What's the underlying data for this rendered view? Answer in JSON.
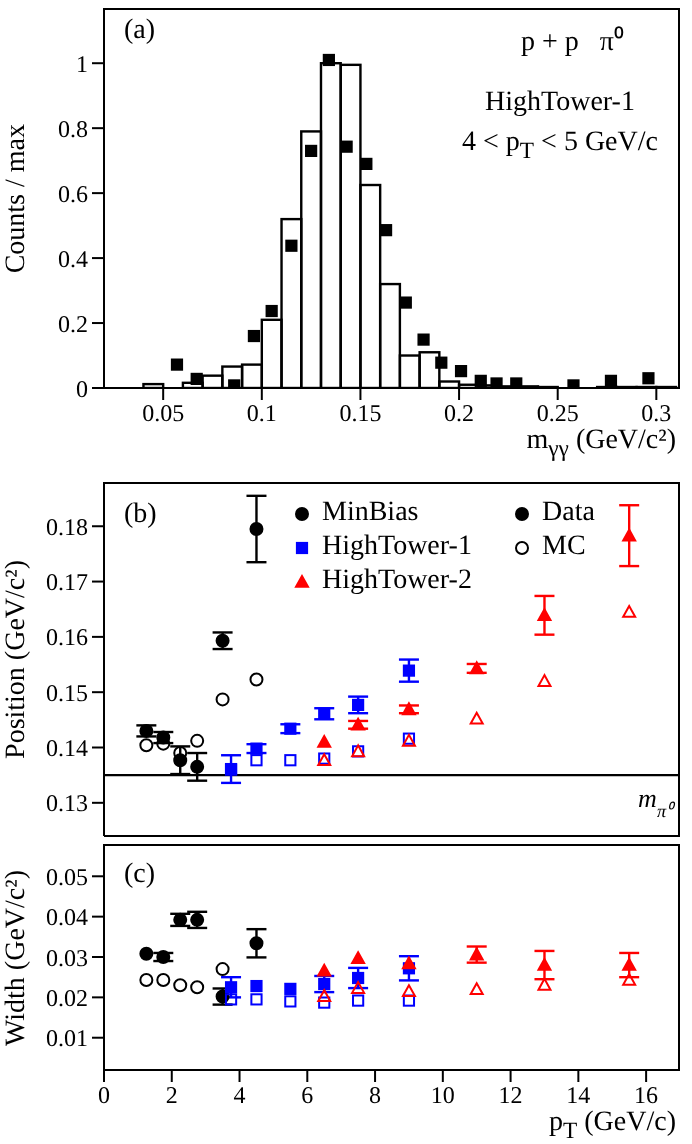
{
  "chart_data": [
    {
      "type": "histogram",
      "xlabel": "m$_{γγ}$ (GeV/c²)",
      "ylabel": "Counts / max",
      "annotations": [
        "(a)",
        "p + p   π⁰",
        "HighTower-1",
        "4 < p$_{T}$ < 5 GeV/c"
      ],
      "xlim": [
        0.02,
        0.312
      ],
      "xticks": [
        0.05,
        0.1,
        0.15,
        0.2,
        0.25,
        0.3
      ],
      "ylim": [
        0,
        1.17
      ],
      "yticks": [
        0,
        0.2,
        0.4,
        0.6,
        0.8,
        1
      ],
      "series": [
        {
          "type": "scatter",
          "color": "#000000",
          "marker": "square",
          "x": [
            0.057,
            0.067,
            0.086,
            0.096,
            0.105,
            0.115,
            0.125,
            0.134,
            0.143,
            0.153,
            0.163,
            0.173,
            0.182,
            0.191,
            0.201,
            0.211,
            0.219,
            0.229,
            0.258,
            0.277,
            0.296
          ],
          "values": [
            0.072,
            0.028,
            0.008,
            0.16,
            0.237,
            0.438,
            0.73,
            1.01,
            0.743,
            0.69,
            0.486,
            0.263,
            0.149,
            0.078,
            0.052,
            0.022,
            0.014,
            0.014,
            0.008,
            0.022,
            0.03
          ]
        },
        {
          "color": "#000000",
          "bins": [
            0.04,
            0.05,
            0.06,
            0.07,
            0.08,
            0.09,
            0.1,
            0.11,
            0.12,
            0.13,
            0.14,
            0.15,
            0.16,
            0.17,
            0.18,
            0.19,
            0.2,
            0.21,
            0.22,
            0.23,
            0.24,
            0.25,
            0.26,
            0.27,
            0.28,
            0.29,
            0.3,
            0.31
          ],
          "values": [
            0.012,
            0,
            0.016,
            0.038,
            0.066,
            0.072,
            0.21,
            0.52,
            0.79,
            1.0,
            0.995,
            0.625,
            0.32,
            0.1,
            0.11,
            0.02,
            0.01,
            0.008,
            0.005,
            0.005,
            0.003,
            0,
            0,
            0.003,
            0.003,
            0.003,
            0.003
          ]
        }
      ]
    },
    {
      "type": "scatter",
      "ylabel": "Position (GeV/c²)",
      "annotations": [
        "(b)",
        "Data"
      ],
      "xlim": [
        0,
        17
      ],
      "xticks": [
        0,
        2,
        4,
        6,
        8,
        10,
        12,
        14,
        16
      ],
      "ylim": [
        0.124,
        0.188
      ],
      "yticks": [
        0.13,
        0.14,
        0.15,
        0.16,
        0.17,
        0.18
      ],
      "tick_labels": "y",
      "legend": "top right",
      "ref_lines": [
        {
          "axis": "y",
          "value": 0.135,
          "label": "m$_{π⁰}$"
        }
      ],
      "series": [
        {
          "name": "MinBias",
          "color": "#000000",
          "marker": "circle",
          "x": [
            1.25,
            1.75,
            2.25,
            2.75,
            3.5,
            4.5
          ],
          "values": [
            0.143,
            0.1418,
            0.1377,
            0.1365,
            0.1593,
            0.1795
          ],
          "errors": [
            0.001,
            0.001,
            0.0025,
            0.0025,
            0.0015,
            0.006
          ]
        },
        {
          "name": "MC",
          "color": "#000000",
          "marker": "circle",
          "x": [
            1.25,
            1.75,
            2.25,
            2.75,
            3.5,
            4.5
          ],
          "values": [
            0.1404,
            0.1407,
            0.139,
            0.1412,
            0.1487,
            0.1523
          ]
        },
        {
          "name": "HighTower-1",
          "color": "#0000ff",
          "marker": "square",
          "x": [
            3.75,
            4.5,
            5.5,
            6.5,
            7.5,
            9
          ],
          "values": [
            0.1361,
            0.1398,
            0.1434,
            0.1461,
            0.1477,
            0.1539
          ],
          "errors": [
            0.0025,
            0.0008,
            0.0008,
            0.001,
            0.0015,
            0.002
          ]
        },
        {
          "color": "#0000ff",
          "marker": "square",
          "x": [
            3.75,
            4.5,
            5.5,
            6.5,
            7.5,
            9
          ],
          "values": [
            0.136,
            0.1377,
            0.1377,
            0.138,
            0.1393,
            0.1416
          ]
        },
        {
          "name": "HighTower-2",
          "color": "#ff0000",
          "marker": "triangle",
          "x": [
            6.5,
            7.5,
            9,
            11,
            13,
            15.5
          ],
          "values": [
            0.141,
            0.1441,
            0.1469,
            0.1543,
            0.1639,
            0.1783
          ],
          "errors": [
            null,
            0.0007,
            0.0007,
            0.0008,
            0.0035,
            0.0055
          ]
        },
        {
          "color": "#ff0000",
          "marker": "triangle",
          "x": [
            6.5,
            7.5,
            9,
            11,
            13,
            15.5
          ],
          "values": [
            0.1377,
            0.1393,
            0.1412,
            0.1452,
            0.152,
            0.1645
          ]
        }
      ]
    },
    {
      "type": "scatter",
      "xlabel": "p$_{T}$ (GeV/c)",
      "ylabel": "Width (GeV/c²)",
      "annotations": [
        "(c)"
      ],
      "xlim": [
        0,
        17
      ],
      "xticks": [
        0,
        2,
        4,
        6,
        8,
        10,
        12,
        14,
        16
      ],
      "ylim": [
        0.002,
        0.058
      ],
      "yticks": [
        0.01,
        0.02,
        0.03,
        0.04,
        0.05
      ],
      "series": [
        {
          "color": "#000000",
          "marker": "circle",
          "x": [
            1.25,
            1.75,
            2.25,
            2.75,
            3.5,
            4.5
          ],
          "values": [
            0.0308,
            0.03,
            0.0392,
            0.0392,
            0.0202,
            0.0334
          ],
          "errors": [
            null,
            0.001,
            0.0015,
            0.002,
            0.002,
            0.0035
          ]
        },
        {
          "color": "#000000",
          "marker": "circle",
          "x": [
            1.25,
            1.75,
            2.25,
            2.75,
            3.5
          ],
          "values": [
            0.0243,
            0.0243,
            0.023,
            0.0225,
            0.027
          ]
        },
        {
          "color": "#0000ff",
          "marker": "square",
          "x": [
            3.75,
            4.5,
            5.5,
            6.5,
            7.5,
            9
          ],
          "values": [
            0.0225,
            0.0228,
            0.0221,
            0.0233,
            0.0248,
            0.0272
          ],
          "errors": [
            0.0025,
            null,
            null,
            0.002,
            0.0025,
            0.003
          ]
        },
        {
          "color": "#0000ff",
          "marker": "square",
          "x": [
            3.75,
            4.5,
            5.5,
            6.5,
            7.5,
            9
          ],
          "values": [
            0.0195,
            0.0195,
            0.019,
            0.0187,
            0.0192,
            0.0192
          ]
        },
        {
          "color": "#ff0000",
          "marker": "triangle",
          "x": [
            6.5,
            7.5,
            9,
            11,
            13,
            15.5
          ],
          "values": [
            0.0266,
            0.0297,
            0.0284,
            0.0306,
            0.028,
            0.028
          ],
          "errors": [
            null,
            null,
            null,
            0.002,
            0.0035,
            0.003
          ]
        },
        {
          "color": "#ff0000",
          "marker": "triangle",
          "x": [
            6.5,
            7.5,
            9,
            11,
            13,
            15.5
          ],
          "values": [
            0.0203,
            0.0223,
            0.0215,
            0.022,
            0.0231,
            0.0243
          ]
        }
      ]
    }
  ]
}
